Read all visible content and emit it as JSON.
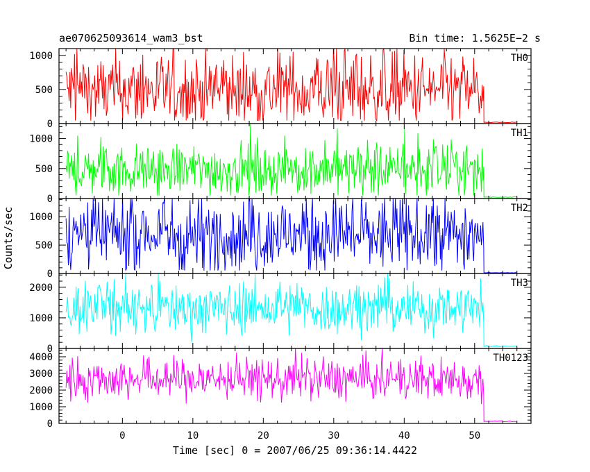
{
  "header": {
    "title": "ae070625093614_wam3_bst",
    "bin_time": "Bin time: 1.5625E−2 s"
  },
  "axes": {
    "xlabel": "Time [sec] 0 = 2007/06/25 09:36:14.4422",
    "ylabel": "Counts/sec"
  },
  "chart_data": {
    "type": "line",
    "title": "ae070625093614_wam3_bst",
    "subtitle": "Bin time: 1.5625E−2 s",
    "xlabel": "Time [sec] 0 = 2007/06/25 09:36:14.4422",
    "ylabel": "Counts/sec",
    "xlim": [
      -9,
      58
    ],
    "x_ticks": [
      0,
      10,
      20,
      30,
      40,
      50
    ],
    "source_end_time": 51.3,
    "grid": false,
    "panels": [
      {
        "name": "TH0",
        "color": "#ff0000",
        "ylim": [
          0,
          1100
        ],
        "y_ticks": [
          0,
          500,
          1000
        ],
        "x_start": -8,
        "x_end": 51.3,
        "tail_end": 56,
        "mean": 480,
        "noise": 280,
        "baseline": 0,
        "tail_level": 15
      },
      {
        "name": "TH1",
        "color": "#00ff00",
        "ylim": [
          0,
          1250
        ],
        "y_ticks": [
          0,
          500,
          1000
        ],
        "x_start": -8,
        "x_end": 51.3,
        "tail_end": 56,
        "mean": 480,
        "noise": 220,
        "baseline": 0,
        "tail_level": 20
      },
      {
        "name": "TH2",
        "color": "#0000ff",
        "ylim": [
          0,
          1320
        ],
        "y_ticks": [
          0,
          500,
          1000
        ],
        "x_start": -8,
        "x_end": 51.3,
        "tail_end": 56,
        "mean": 680,
        "noise": 350,
        "baseline": 0,
        "tail_level": 10
      },
      {
        "name": "TH3",
        "color": "#00ffff",
        "ylim": [
          0,
          2450
        ],
        "y_ticks": [
          0,
          1000,
          2000
        ],
        "x_start": -8,
        "x_end": 51.3,
        "tail_end": 56,
        "mean": 1300,
        "noise": 420,
        "baseline": 0,
        "tail_level": 60
      },
      {
        "name": "TH0123",
        "color": "#ff00ff",
        "ylim": [
          0,
          4500
        ],
        "y_ticks": [
          0,
          1000,
          2000,
          3000,
          4000
        ],
        "x_start": -8,
        "x_end": 51.3,
        "tail_end": 56,
        "mean": 2650,
        "noise": 650,
        "baseline": 0,
        "tail_level": 100
      }
    ]
  }
}
